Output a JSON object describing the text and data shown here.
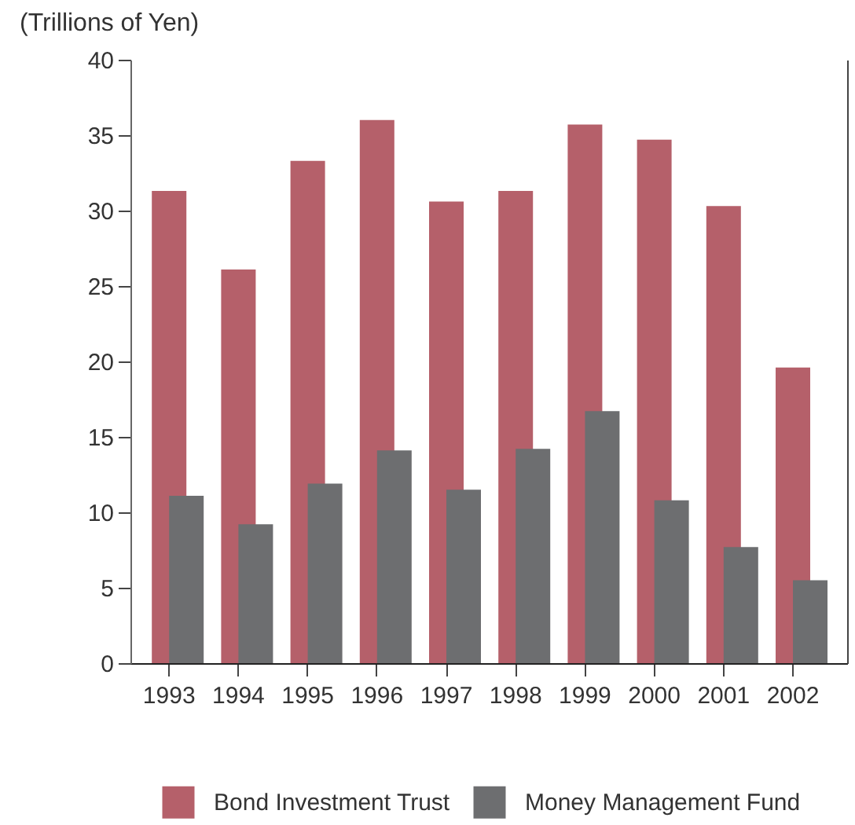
{
  "chart_data": {
    "type": "bar",
    "ylabel": "(Trillions of Yen)",
    "categories": [
      "1993",
      "1994",
      "1995",
      "1996",
      "1997",
      "1998",
      "1999",
      "2000",
      "2001",
      "2002"
    ],
    "series": [
      {
        "name": "Bond Investment Trust",
        "color": "#b5606a",
        "values": [
          31.3,
          26.1,
          33.3,
          36.0,
          30.6,
          31.3,
          35.7,
          34.7,
          30.3,
          19.6
        ]
      },
      {
        "name": "Money Management Fund",
        "color": "#6d6e70",
        "values": [
          11.1,
          9.2,
          11.9,
          14.1,
          11.5,
          14.2,
          16.7,
          10.8,
          7.7,
          5.5
        ]
      }
    ],
    "ylim": [
      0,
      40
    ],
    "yticks": [
      0,
      5,
      10,
      15,
      20,
      25,
      30,
      35,
      40
    ],
    "legend": "bottom"
  }
}
